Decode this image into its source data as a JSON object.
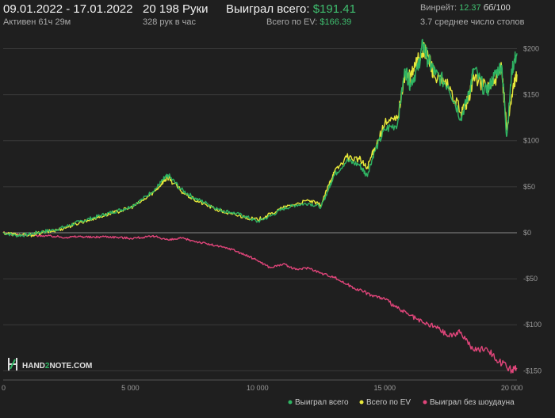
{
  "header": {
    "date_range": "09.01.2022 - 17.01.2022",
    "active": "Активен 61ч 29м",
    "hands": "20 198 Руки",
    "hands_per_hour": "328 рук в час",
    "won_total_label": "Выиграл всего:",
    "won_total_value": "$191.41",
    "total_ev_label": "Всего по EV:",
    "total_ev_value": "$166.39",
    "winrate_label": "Винрейт:",
    "winrate_value": "12.37",
    "winrate_unit": "бб/100",
    "avg_tables": "3.7 среднее число столов"
  },
  "logo": {
    "text_a": "HAND",
    "text_b": "2",
    "text_c": "NOTE.COM"
  },
  "colors": {
    "won": "#2fb463",
    "ev": "#e8e83a",
    "no_showdown": "#e0457a",
    "grid": "#3a3a3a",
    "zero": "#8a8a8a"
  },
  "chart_data": {
    "type": "line",
    "xlim": [
      0,
      20198
    ],
    "ylim": [
      -160,
      215
    ],
    "x_ticks": [
      0,
      5000,
      10000,
      15000,
      20000
    ],
    "x_tick_labels": [
      "0",
      "5 000",
      "10 000",
      "15 000",
      "20 000"
    ],
    "y_ticks": [
      200,
      150,
      100,
      50,
      0,
      -50,
      -100,
      -150
    ],
    "y_tick_labels": [
      "$200",
      "$150",
      "$100",
      "$50",
      "$0",
      "-$50",
      "-$100",
      "-$150"
    ],
    "legend_position": "bottom-right",
    "series": [
      {
        "name": "Выиграл всего",
        "color": "#2fb463",
        "x": [
          0,
          500,
          1000,
          1500,
          2000,
          2500,
          3000,
          3500,
          4000,
          4500,
          5000,
          5500,
          6000,
          6300,
          6500,
          7000,
          7500,
          8000,
          8500,
          9000,
          9500,
          10000,
          10500,
          11000,
          11500,
          12000,
          12500,
          12800,
          13000,
          13500,
          14000,
          14300,
          14600,
          15000,
          15500,
          15800,
          16000,
          16300,
          16500,
          16700,
          17000,
          17500,
          18000,
          18300,
          18500,
          19000,
          19300,
          19600,
          19800,
          20000,
          20198
        ],
        "y": [
          0,
          -3,
          -2,
          1,
          3,
          7,
          12,
          16,
          20,
          24,
          28,
          37,
          48,
          58,
          62,
          47,
          38,
          32,
          25,
          22,
          18,
          12,
          18,
          26,
          30,
          32,
          28,
          48,
          62,
          78,
          74,
          62,
          88,
          112,
          118,
          178,
          162,
          178,
          205,
          188,
          172,
          160,
          125,
          150,
          178,
          152,
          170,
          182,
          105,
          178,
          195
        ]
      },
      {
        "name": "Всего по EV",
        "color": "#e8e83a",
        "x": [
          0,
          500,
          1000,
          1500,
          2000,
          2500,
          3000,
          3500,
          4000,
          4500,
          5000,
          5500,
          6000,
          6300,
          6500,
          7000,
          7500,
          8000,
          8500,
          9000,
          9500,
          10000,
          10500,
          11000,
          11500,
          12000,
          12500,
          12800,
          13000,
          13500,
          14000,
          14300,
          14600,
          15000,
          15500,
          15800,
          16000,
          16300,
          16500,
          16700,
          17000,
          17500,
          18000,
          18300,
          18500,
          19000,
          19300,
          19600,
          19800,
          20000,
          20198
        ],
        "y": [
          0,
          -2,
          -3,
          0,
          2,
          6,
          11,
          15,
          19,
          23,
          27,
          35,
          46,
          56,
          60,
          45,
          36,
          30,
          24,
          20,
          17,
          14,
          20,
          27,
          31,
          35,
          30,
          52,
          65,
          82,
          80,
          70,
          92,
          118,
          124,
          172,
          168,
          188,
          198,
          192,
          168,
          158,
          130,
          145,
          170,
          158,
          162,
          178,
          112,
          150,
          172
        ]
      },
      {
        "name": "Выиграл без шоудауна",
        "color": "#e0457a",
        "x": [
          0,
          500,
          1000,
          1500,
          2000,
          2500,
          3000,
          3500,
          4000,
          4500,
          5000,
          5500,
          6000,
          6500,
          7000,
          7500,
          8000,
          8500,
          9000,
          9500,
          10000,
          10500,
          11000,
          11500,
          12000,
          12500,
          13000,
          13500,
          14000,
          14500,
          15000,
          15500,
          16000,
          16500,
          17000,
          17500,
          18000,
          18500,
          19000,
          19500,
          20000,
          20198
        ],
        "y": [
          0,
          -2,
          -3,
          -3,
          -4,
          -5,
          -4,
          -5,
          -4,
          -5,
          -6,
          -5,
          -4,
          -8,
          -6,
          -9,
          -12,
          -15,
          -18,
          -24,
          -30,
          -38,
          -34,
          -40,
          -38,
          -44,
          -48,
          -56,
          -62,
          -68,
          -72,
          -82,
          -90,
          -98,
          -102,
          -112,
          -108,
          -128,
          -125,
          -140,
          -150,
          -148
        ]
      }
    ]
  }
}
